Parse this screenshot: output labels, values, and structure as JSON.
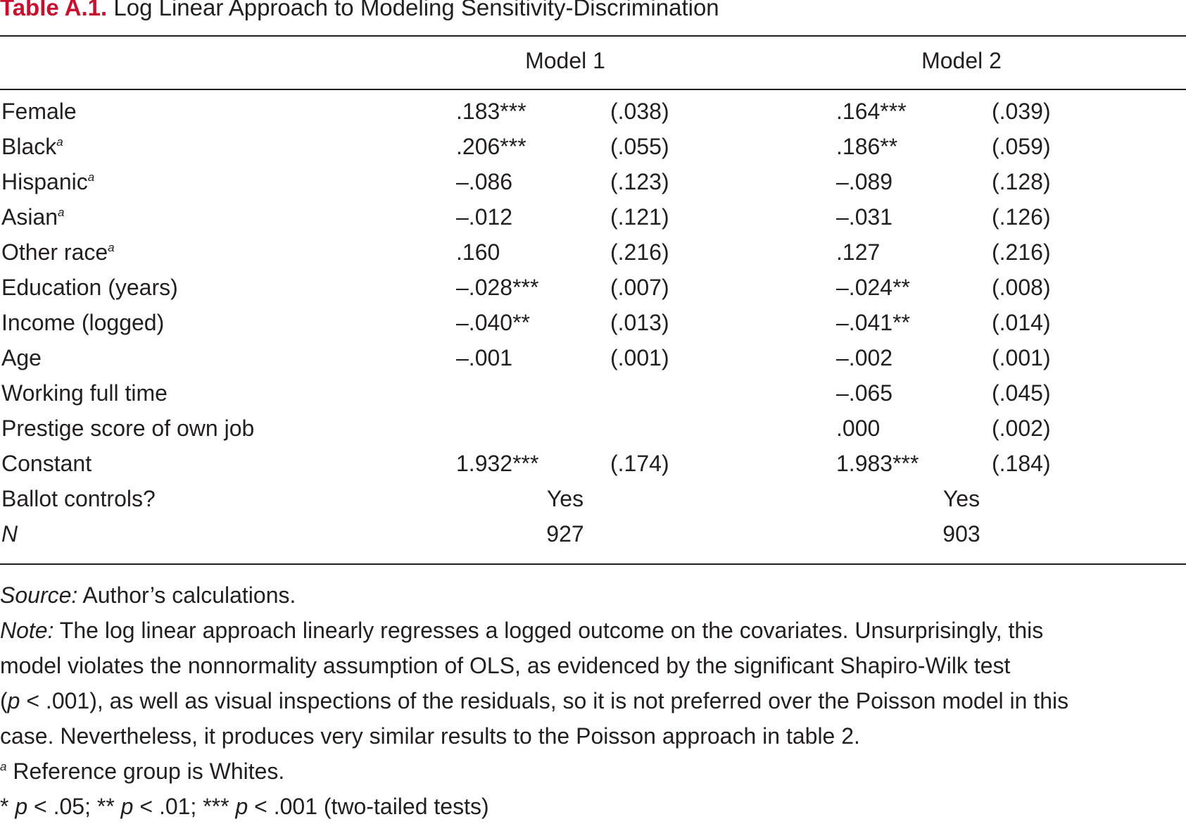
{
  "caption": {
    "label": "Table A.1.",
    "title": "Log Linear Approach to Modeling Sensitivity-Discrimination"
  },
  "columns": {
    "model1": "Model 1",
    "model2": "Model 2"
  },
  "rows": [
    {
      "label": "Female",
      "fn": "",
      "m1_coef": ".183***",
      "m1_se": "(.038)",
      "m2_coef": ".164***",
      "m2_se": "(.039)"
    },
    {
      "label": "Black",
      "fn": "a",
      "m1_coef": ".206***",
      "m1_se": "(.055)",
      "m2_coef": ".186**",
      "m2_se": "(.059)"
    },
    {
      "label": "Hispanic",
      "fn": "a",
      "m1_coef": "–.086",
      "m1_se": "(.123)",
      "m2_coef": "–.089",
      "m2_se": "(.128)"
    },
    {
      "label": "Asian",
      "fn": "a",
      "m1_coef": "–.012",
      "m1_se": "(.121)",
      "m2_coef": "–.031",
      "m2_se": "(.126)"
    },
    {
      "label": "Other race",
      "fn": "a",
      "m1_coef": ".160",
      "m1_se": "(.216)",
      "m2_coef": ".127",
      "m2_se": "(.216)"
    },
    {
      "label": "Education (years)",
      "fn": "",
      "m1_coef": "–.028***",
      "m1_se": "(.007)",
      "m2_coef": "–.024**",
      "m2_se": "(.008)"
    },
    {
      "label": "Income (logged)",
      "fn": "",
      "m1_coef": "–.040**",
      "m1_se": "(.013)",
      "m2_coef": "–.041**",
      "m2_se": "(.014)"
    },
    {
      "label": "Age",
      "fn": "",
      "m1_coef": "–.001",
      "m1_se": "(.001)",
      "m2_coef": "–.002",
      "m2_se": "(.001)"
    },
    {
      "label": "Working full time",
      "fn": "",
      "m1_coef": "",
      "m1_se": "",
      "m2_coef": "–.065",
      "m2_se": "(.045)"
    },
    {
      "label": "Prestige score of own job",
      "fn": "",
      "m1_coef": "",
      "m1_se": "",
      "m2_coef": ".000",
      "m2_se": "(.002)"
    },
    {
      "label": "Constant",
      "fn": "",
      "m1_coef": "1.932***",
      "m1_se": "(.174)",
      "m2_coef": "1.983***",
      "m2_se": "(.184)"
    }
  ],
  "summary_rows": [
    {
      "label": "Ballot controls?",
      "italic": false,
      "m1": "Yes",
      "m2": "Yes"
    },
    {
      "label": "N",
      "italic": true,
      "m1": "927",
      "m2": "903"
    }
  ],
  "notes": {
    "source_label": "Source:",
    "source_text": " Author’s calculations.",
    "note_label": "Note:",
    "note_lines": [
      " The log linear approach linearly regresses a logged outcome on the covariates. Unsurprisingly, this",
      "model violates the nonnormality assumption of OLS, as evidenced by the significant Shapiro-Wilk test",
      "(",
      "p",
      " < .001), as well as visual inspections of the residuals, so it is not preferred over the Poisson model in this",
      "case. Nevertheless, it produces very similar results to the Poisson approach in table 2."
    ],
    "footnote_mark": "a",
    "footnote_text": " Reference group is Whites.",
    "sig": {
      "s1": "* ",
      "p1": "p",
      "v1": " < .05; ** ",
      "p2": "p",
      "v2": " < .01; *** ",
      "p3": "p",
      "v3": " < .001 (two-tailed tests)"
    }
  }
}
